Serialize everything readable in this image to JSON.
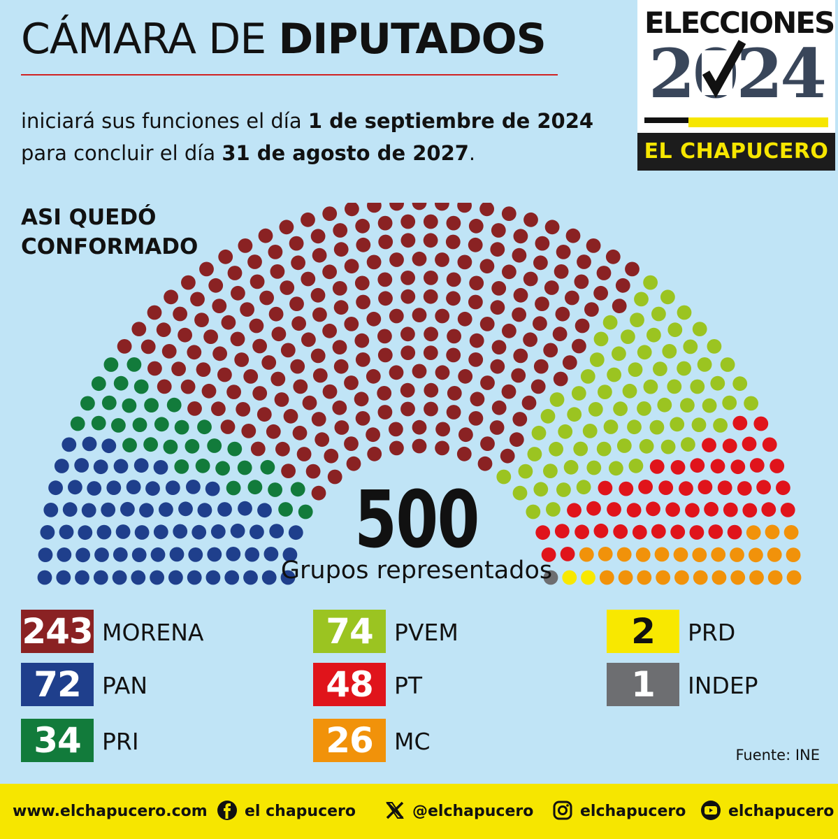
{
  "header": {
    "title_light": "CÁMARA DE ",
    "title_bold": "DIPUTADOS",
    "subtitle_1": "iniciará sus funciones el día ",
    "subtitle_date1": "1 de septiembre de 2024",
    "subtitle_2": " para concluir el día ",
    "subtitle_date2": "31 de agosto de 2027",
    "subtitle_end": ".",
    "section_line1": "ASI QUEDÓ",
    "section_line2": "CONFORMADO"
  },
  "logo": {
    "line1": "ELECCIONES",
    "year": "2024",
    "brand": "EL CHAPUCERO"
  },
  "chart_data": {
    "type": "parliament",
    "total": 500,
    "total_label": "Grupos representados",
    "series": [
      {
        "name": "PAN",
        "value": 72,
        "color": "#1f3f8c"
      },
      {
        "name": "PRI",
        "value": 34,
        "color": "#127b3b"
      },
      {
        "name": "MORENA",
        "value": 243,
        "color": "#8a2223"
      },
      {
        "name": "PVEM",
        "value": 74,
        "color": "#9bc421"
      },
      {
        "name": "PT",
        "value": 48,
        "color": "#e0141b"
      },
      {
        "name": "MC",
        "value": 26,
        "color": "#f1920a"
      },
      {
        "name": "PRD",
        "value": 2,
        "color": "#f8e800"
      },
      {
        "name": "INDEP",
        "value": 1,
        "color": "#6d6e71"
      }
    ]
  },
  "legend": [
    {
      "value": "243",
      "label": "MORENA",
      "color": "#8a2223",
      "text_color": "#ffffff"
    },
    {
      "value": "72",
      "label": "PAN",
      "color": "#1f3f8c",
      "text_color": "#ffffff"
    },
    {
      "value": "34",
      "label": "PRI",
      "color": "#127b3b",
      "text_color": "#ffffff"
    },
    {
      "value": "74",
      "label": "PVEM",
      "color": "#9bc421",
      "text_color": "#ffffff"
    },
    {
      "value": "48",
      "label": "PT",
      "color": "#e0141b",
      "text_color": "#ffffff"
    },
    {
      "value": "26",
      "label": "MC",
      "color": "#f1920a",
      "text_color": "#ffffff"
    },
    {
      "value": "2",
      "label": "PRD",
      "color": "#f8e800",
      "text_color": "#111111"
    },
    {
      "value": "1",
      "label": "INDEP",
      "color": "#6d6e71",
      "text_color": "#ffffff"
    }
  ],
  "source": "Fuente: INE",
  "footer": {
    "website": "www.elchapucero.com",
    "facebook": "el chapucero",
    "x": "@elchapucero",
    "instagram": "elchapucero",
    "youtube": "elchapucero",
    "facebook_icon": "facebook-icon",
    "x_icon": "x-icon",
    "instagram_icon": "instagram-icon",
    "youtube_icon": "youtube-icon"
  }
}
